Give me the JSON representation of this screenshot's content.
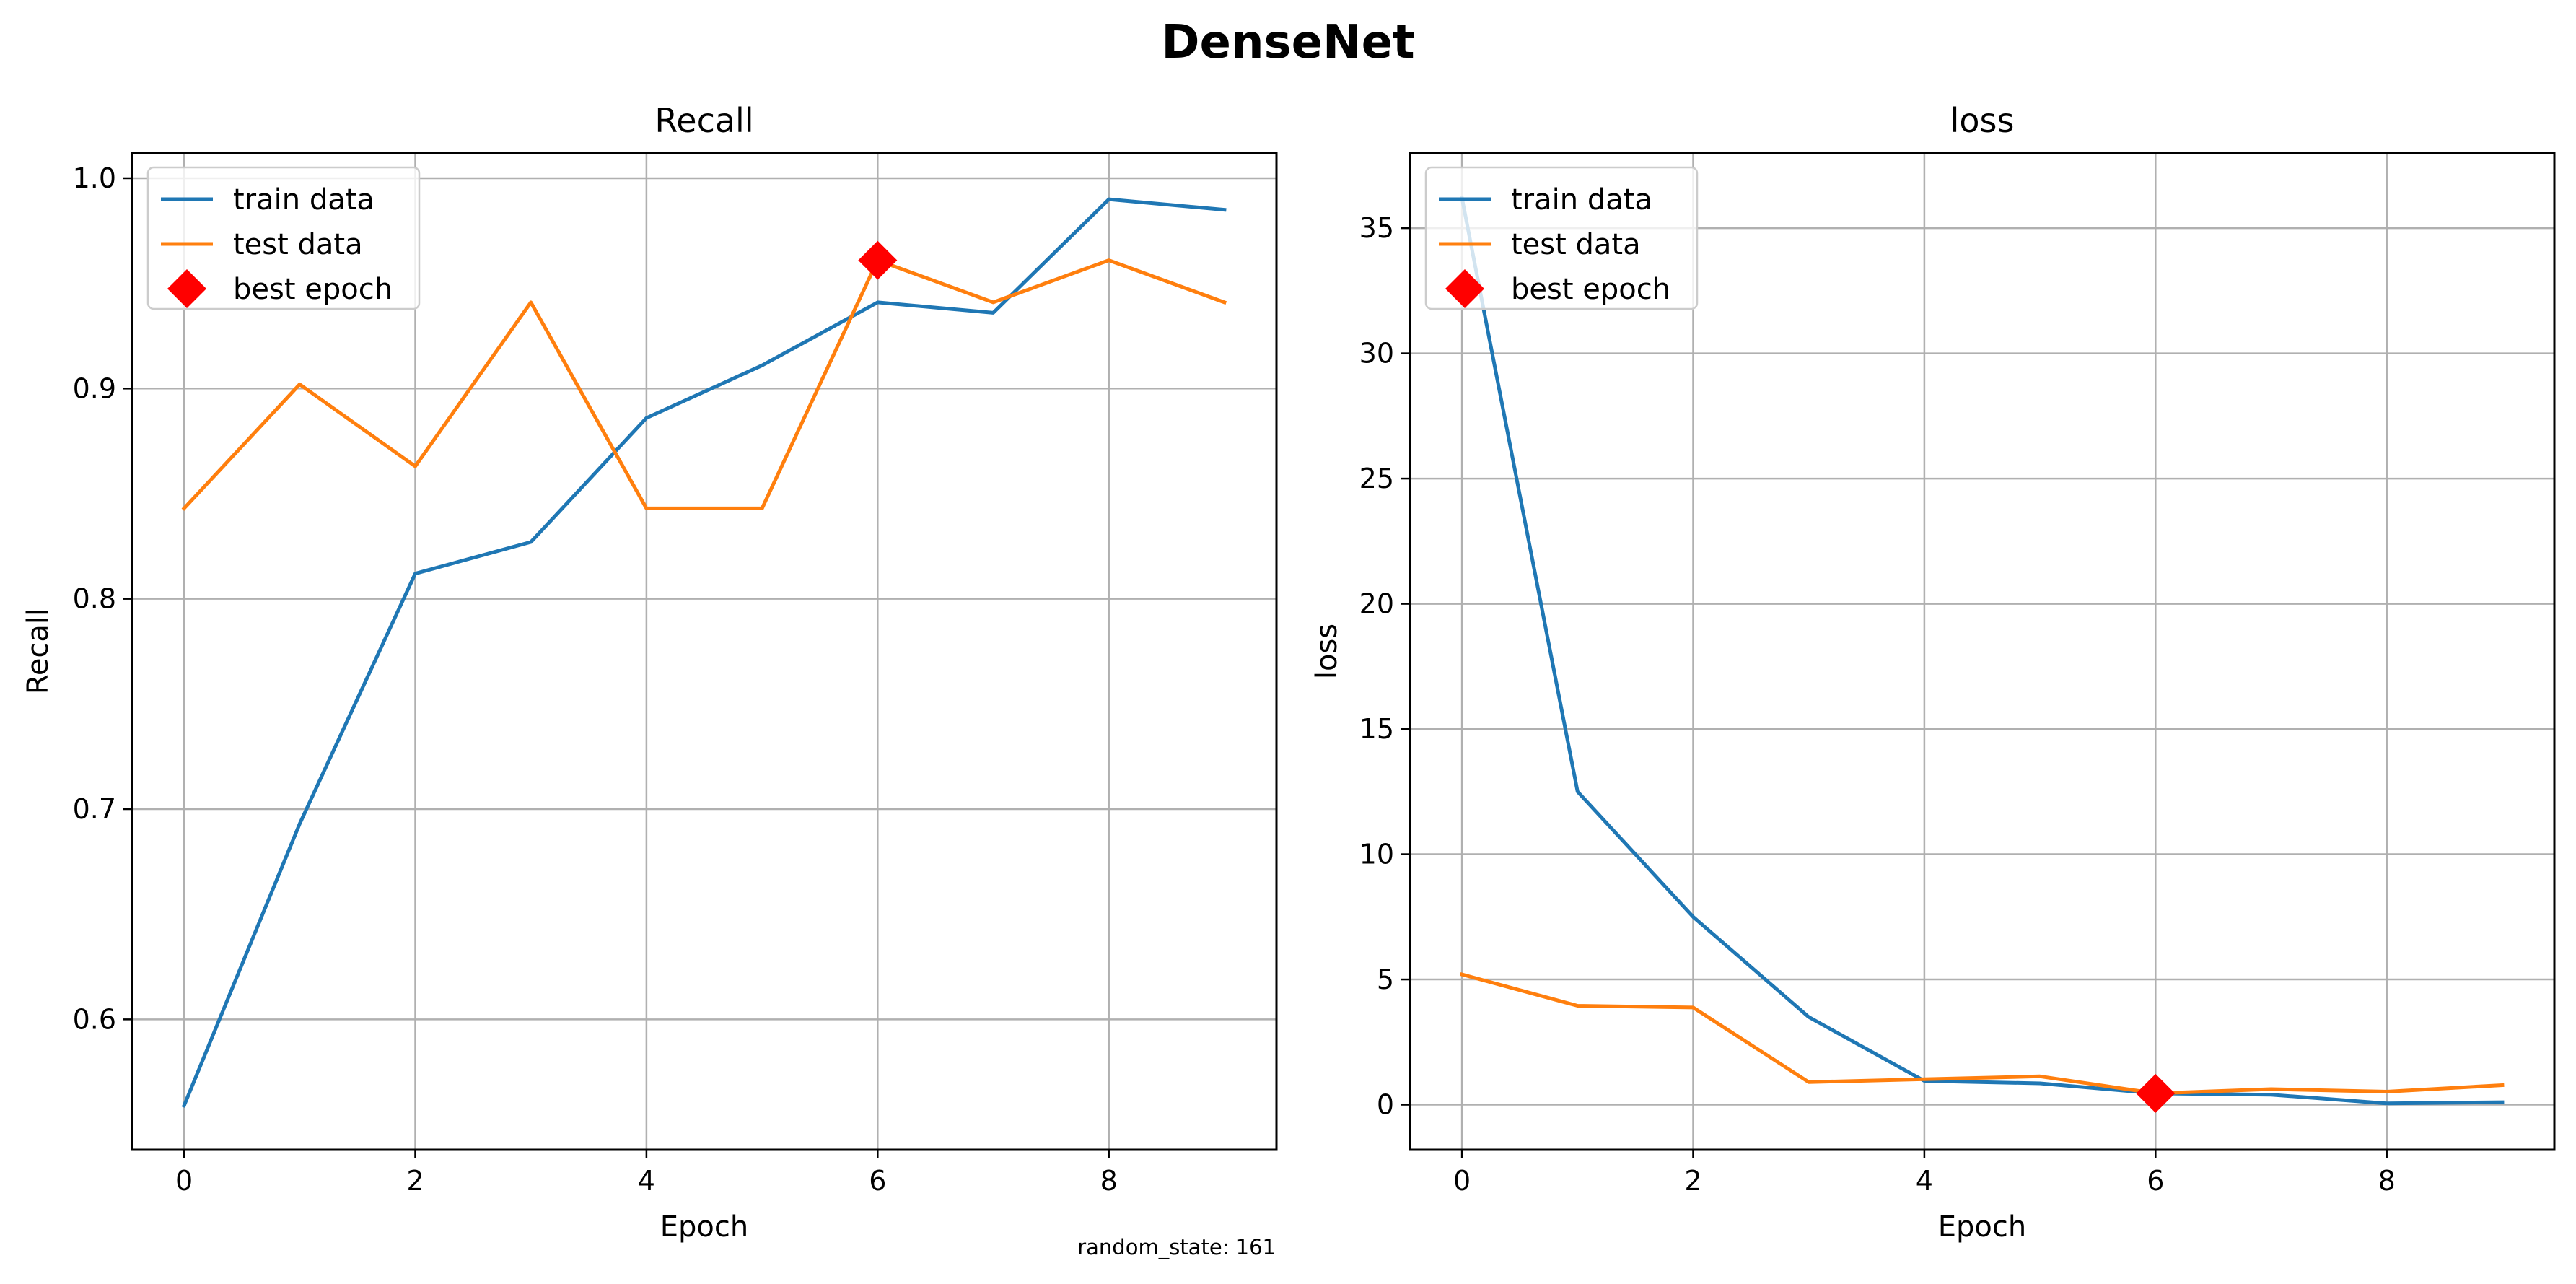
{
  "figure_title": "DenseNet",
  "footnote": "random_state: 161",
  "colors": {
    "train": "#1f77b4",
    "test": "#ff7f0e",
    "best": "#ff0000",
    "grid": "#b0b0b0"
  },
  "chart_data": [
    {
      "type": "line",
      "title": "Recall",
      "xlabel": "Epoch",
      "ylabel": "Recall",
      "xlim": [
        -0.45,
        9.45
      ],
      "ylim": [
        0.538,
        1.012
      ],
      "xticks": [
        0,
        2,
        4,
        6,
        8
      ],
      "xtick_labels": [
        "0",
        "2",
        "4",
        "6",
        "8"
      ],
      "yticks": [
        0.6,
        0.7,
        0.8,
        0.9,
        1.0
      ],
      "ytick_labels": [
        "0.6",
        "0.7",
        "0.8",
        "0.9",
        "1.0"
      ],
      "grid": true,
      "legend_position": "top-left",
      "x": [
        0,
        1,
        2,
        3,
        4,
        5,
        6,
        7,
        8,
        9
      ],
      "series": [
        {
          "name": "train data",
          "values": [
            0.559,
            0.693,
            0.812,
            0.827,
            0.886,
            0.911,
            0.941,
            0.936,
            0.99,
            0.985
          ]
        },
        {
          "name": "test data",
          "values": [
            0.843,
            0.902,
            0.863,
            0.941,
            0.843,
            0.843,
            0.961,
            0.941,
            0.961,
            0.941
          ]
        }
      ],
      "best_epoch": {
        "name": "best epoch",
        "x": 6,
        "y": 0.961
      }
    },
    {
      "type": "line",
      "title": "loss",
      "xlabel": "Epoch",
      "ylabel": "loss",
      "xlim": [
        -0.45,
        9.45
      ],
      "ylim": [
        -1.8,
        38.0
      ],
      "xticks": [
        0,
        2,
        4,
        6,
        8
      ],
      "xtick_labels": [
        "0",
        "2",
        "4",
        "6",
        "8"
      ],
      "yticks": [
        0,
        5,
        10,
        15,
        20,
        25,
        30,
        35
      ],
      "ytick_labels": [
        "0",
        "5",
        "10",
        "15",
        "20",
        "25",
        "30",
        "35"
      ],
      "grid": true,
      "legend_position": "top-left",
      "x": [
        0,
        1,
        2,
        3,
        4,
        5,
        6,
        7,
        8,
        9
      ],
      "series": [
        {
          "name": "train data",
          "values": [
            36.2,
            12.5,
            7.5,
            3.5,
            0.95,
            0.85,
            0.45,
            0.4,
            0.05,
            0.1
          ]
        },
        {
          "name": "test data",
          "values": [
            5.2,
            3.95,
            3.88,
            0.9,
            1.02,
            1.13,
            0.45,
            0.62,
            0.52,
            0.78
          ]
        }
      ],
      "best_epoch": {
        "name": "best epoch",
        "x": 6,
        "y": 0.45
      }
    }
  ]
}
